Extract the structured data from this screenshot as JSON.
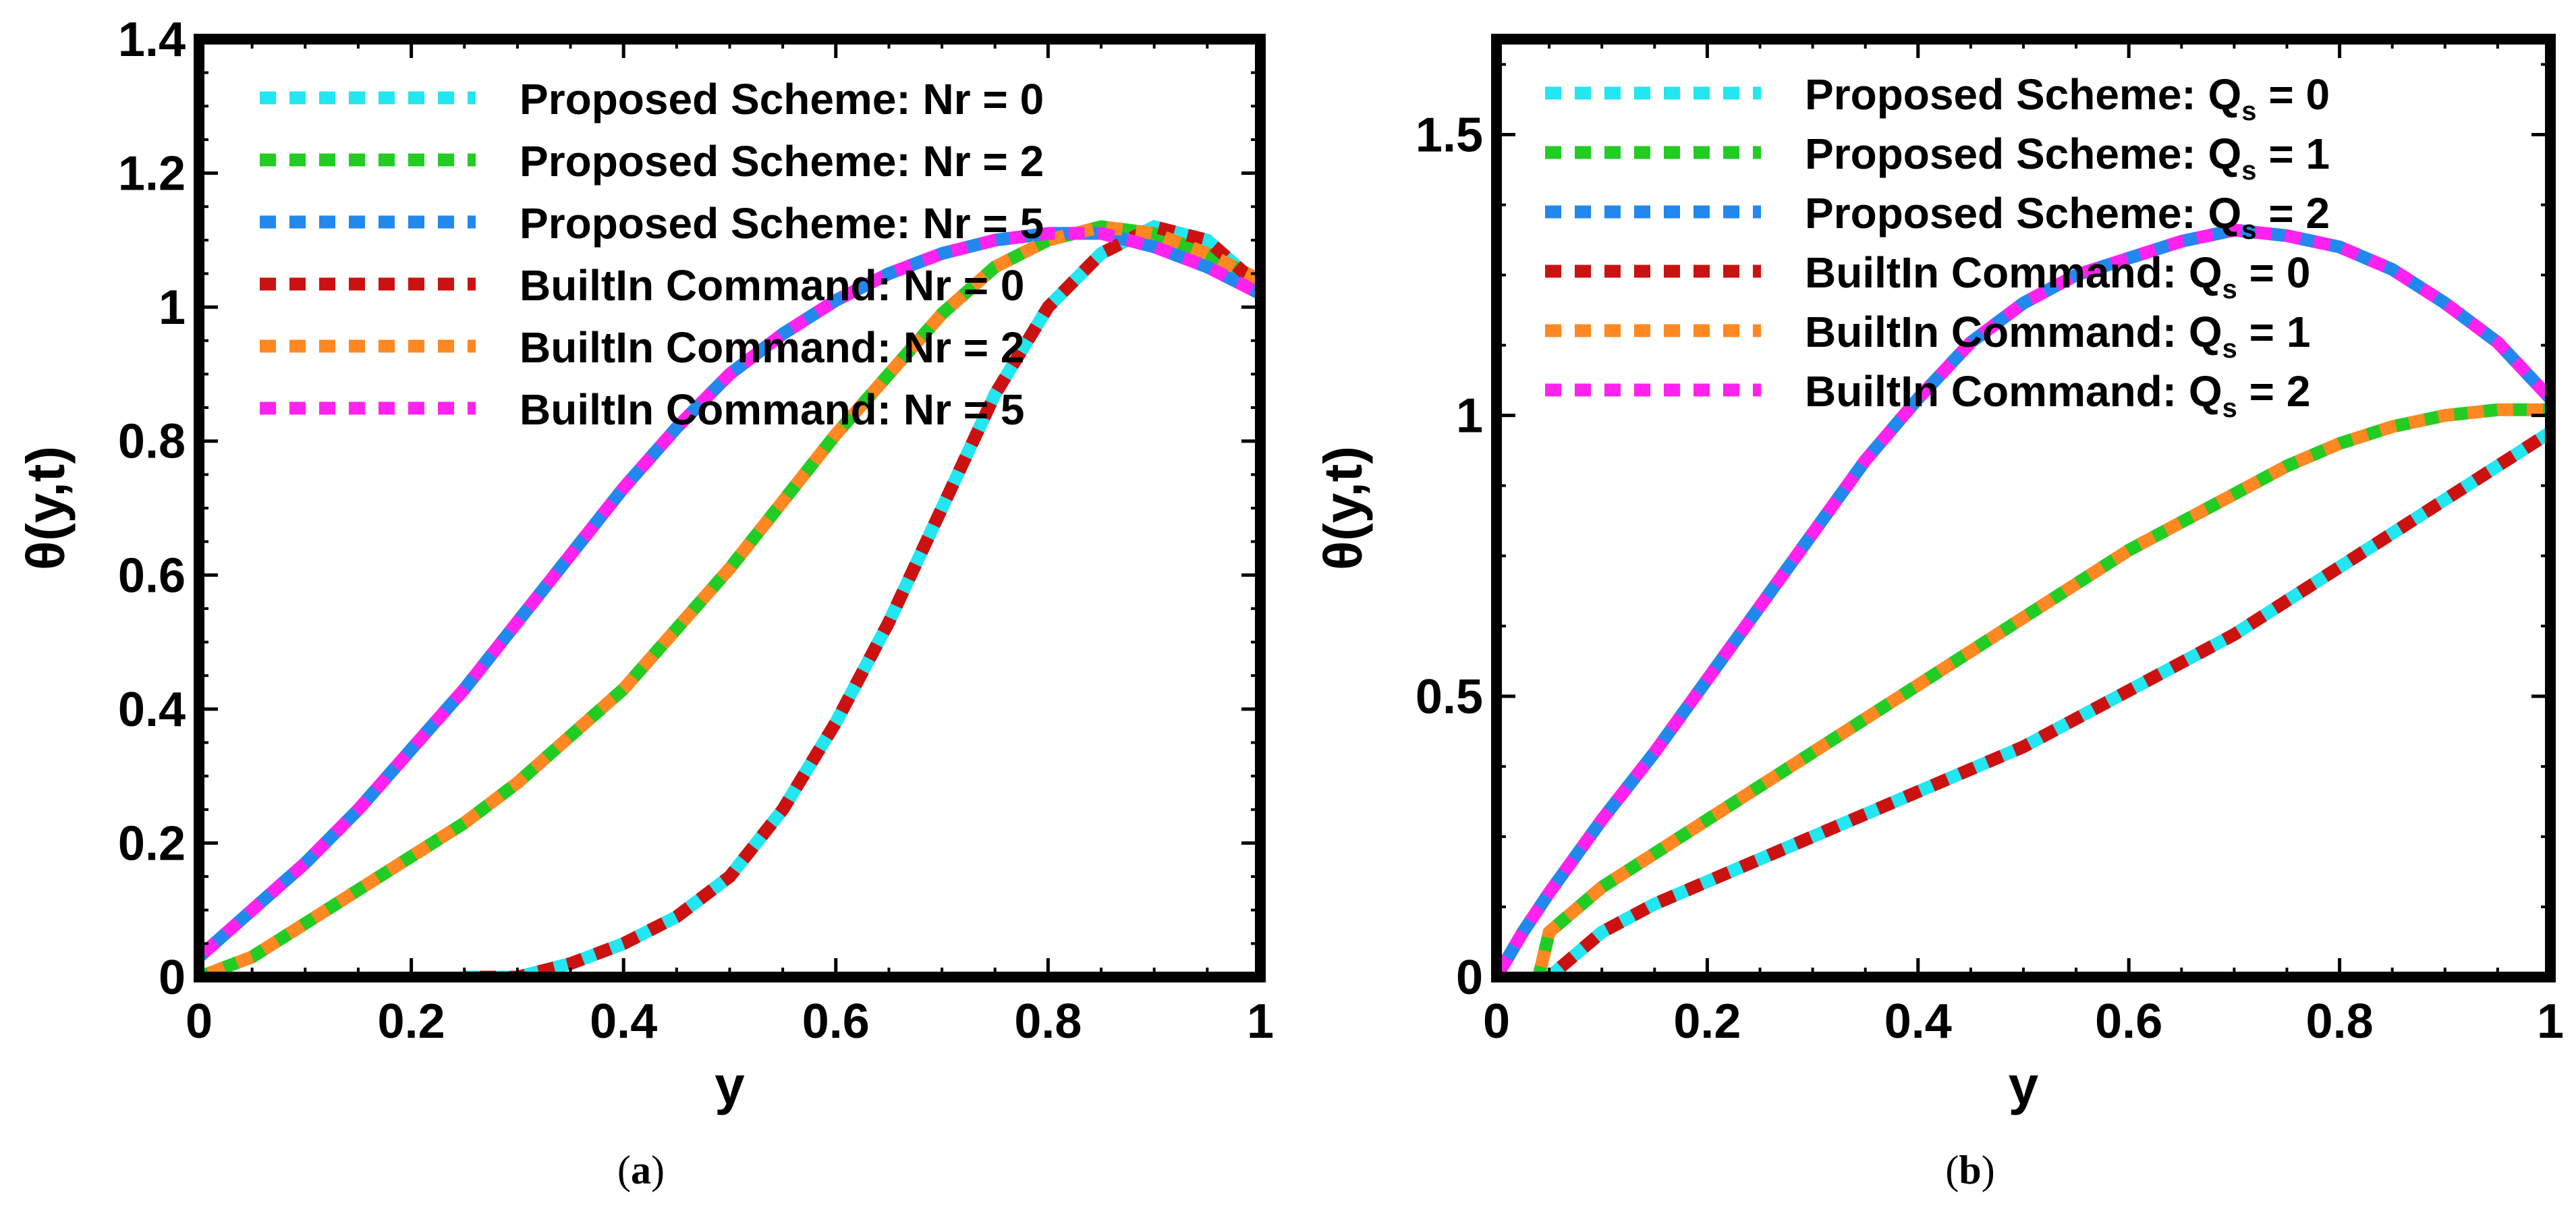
{
  "chart_data": [
    {
      "type": "line",
      "panel": "(a)",
      "xlabel": "y",
      "ylabel": "θ(y,t)",
      "xlim": [
        0,
        1
      ],
      "ylim": [
        0,
        1.4
      ],
      "xticks": [
        0,
        0.2,
        0.4,
        0.6,
        0.8,
        1
      ],
      "xtick_labels": [
        "0",
        "0.2",
        "0.4",
        "0.6",
        "0.8",
        "1"
      ],
      "yticks": [
        0,
        0.2,
        0.4,
        0.6,
        0.8,
        1,
        1.2,
        1.4
      ],
      "ytick_labels": [
        "0",
        "0.2",
        "0.4",
        "0.6",
        "0.8",
        "1",
        "1.2",
        "1.4"
      ],
      "legend_position": "top-left",
      "series": [
        {
          "name": "Proposed Scheme: Nr = 0",
          "prefix": "Proposed Scheme: Nr = ",
          "suffix": "0",
          "color": "#22e6f0",
          "x": [
            0.25,
            0.3,
            0.35,
            0.4,
            0.45,
            0.5,
            0.55,
            0.6,
            0.65,
            0.7,
            0.75,
            0.8,
            0.85,
            0.9,
            0.95,
            1.0
          ],
          "y": [
            0.0,
            0.0,
            0.02,
            0.05,
            0.09,
            0.15,
            0.25,
            0.38,
            0.53,
            0.7,
            0.87,
            1.0,
            1.08,
            1.12,
            1.1,
            1.03
          ]
        },
        {
          "name": "Proposed Scheme: Nr = 2",
          "prefix": "Proposed Scheme: Nr = ",
          "suffix": "2",
          "color": "#22cc22",
          "x": [
            0.0,
            0.05,
            0.1,
            0.15,
            0.2,
            0.25,
            0.3,
            0.35,
            0.4,
            0.45,
            0.5,
            0.55,
            0.6,
            0.65,
            0.7,
            0.75,
            0.8,
            0.85,
            0.9,
            0.95,
            1.0
          ],
          "y": [
            0.0,
            0.03,
            0.08,
            0.13,
            0.18,
            0.23,
            0.29,
            0.36,
            0.43,
            0.52,
            0.61,
            0.71,
            0.81,
            0.9,
            0.99,
            1.06,
            1.1,
            1.12,
            1.11,
            1.08,
            1.04
          ]
        },
        {
          "name": "Proposed Scheme: Nr = 5",
          "prefix": "Proposed Scheme: Nr = ",
          "suffix": "5",
          "color": "#2288ee",
          "x": [
            0.0,
            0.05,
            0.1,
            0.15,
            0.2,
            0.25,
            0.3,
            0.35,
            0.4,
            0.45,
            0.5,
            0.55,
            0.6,
            0.65,
            0.7,
            0.75,
            0.8,
            0.85,
            0.9,
            0.95,
            1.0
          ],
          "y": [
            0.03,
            0.1,
            0.17,
            0.25,
            0.34,
            0.43,
            0.53,
            0.63,
            0.73,
            0.82,
            0.9,
            0.96,
            1.01,
            1.05,
            1.08,
            1.1,
            1.11,
            1.11,
            1.09,
            1.06,
            1.02
          ]
        },
        {
          "name": "BuiltIn Command: Nr = 0",
          "prefix": "BuiltIn Command: Nr = ",
          "suffix": "0",
          "color": "#cc1111",
          "x": [
            0.25,
            0.3,
            0.35,
            0.4,
            0.45,
            0.5,
            0.55,
            0.6,
            0.65,
            0.7,
            0.75,
            0.8,
            0.85,
            0.9,
            0.95,
            1.0
          ],
          "y": [
            0.0,
            0.0,
            0.02,
            0.05,
            0.09,
            0.15,
            0.25,
            0.38,
            0.53,
            0.7,
            0.87,
            1.0,
            1.08,
            1.12,
            1.1,
            1.03
          ]
        },
        {
          "name": "BuiltIn Command: Nr = 2",
          "prefix": "BuiltIn Command: Nr = ",
          "suffix": "2",
          "color": "#ff8822",
          "x": [
            0.0,
            0.05,
            0.1,
            0.15,
            0.2,
            0.25,
            0.3,
            0.35,
            0.4,
            0.45,
            0.5,
            0.55,
            0.6,
            0.65,
            0.7,
            0.75,
            0.8,
            0.85,
            0.9,
            0.95,
            1.0
          ],
          "y": [
            0.0,
            0.03,
            0.08,
            0.13,
            0.18,
            0.23,
            0.29,
            0.36,
            0.43,
            0.52,
            0.61,
            0.71,
            0.81,
            0.9,
            0.99,
            1.06,
            1.1,
            1.12,
            1.11,
            1.08,
            1.04
          ]
        },
        {
          "name": "BuiltIn Command: Nr = 5",
          "prefix": "BuiltIn Command: Nr = ",
          "suffix": "5",
          "color": "#ff22ee",
          "x": [
            0.0,
            0.05,
            0.1,
            0.15,
            0.2,
            0.25,
            0.3,
            0.35,
            0.4,
            0.45,
            0.5,
            0.55,
            0.6,
            0.65,
            0.7,
            0.75,
            0.8,
            0.85,
            0.9,
            0.95,
            1.0
          ],
          "y": [
            0.03,
            0.1,
            0.17,
            0.25,
            0.34,
            0.43,
            0.53,
            0.63,
            0.73,
            0.82,
            0.9,
            0.96,
            1.01,
            1.05,
            1.08,
            1.1,
            1.11,
            1.11,
            1.09,
            1.06,
            1.02
          ]
        }
      ]
    },
    {
      "type": "line",
      "panel": "(b)",
      "xlabel": "y",
      "ylabel": "θ(y,t)",
      "xlim": [
        0,
        1
      ],
      "ylim": [
        0,
        1.67
      ],
      "xticks": [
        0,
        0.2,
        0.4,
        0.6,
        0.8,
        1
      ],
      "xtick_labels": [
        "0",
        "0.2",
        "0.4",
        "0.6",
        "0.8",
        "1"
      ],
      "yticks": [
        0,
        0.5,
        1,
        1.5
      ],
      "ytick_labels": [
        "0",
        "0.5",
        "1",
        "1.5"
      ],
      "legend_position": "top-left",
      "series": [
        {
          "name": "Proposed Scheme: Qs = 0",
          "prefix": "Proposed Scheme: Q",
          "sub": "s",
          "suffix": " = 0",
          "color": "#22e6f0",
          "x": [
            0.05,
            0.1,
            0.15,
            0.2,
            0.25,
            0.3,
            0.35,
            0.4,
            0.45,
            0.5,
            0.55,
            0.6,
            0.65,
            0.7,
            0.75,
            0.8,
            0.85,
            0.9,
            0.95,
            1.0
          ],
          "y": [
            0.0,
            0.08,
            0.13,
            0.17,
            0.21,
            0.25,
            0.29,
            0.33,
            0.37,
            0.41,
            0.46,
            0.51,
            0.56,
            0.61,
            0.67,
            0.73,
            0.79,
            0.85,
            0.91,
            0.97
          ]
        },
        {
          "name": "Proposed Scheme: Qs = 1",
          "prefix": "Proposed Scheme: Q",
          "sub": "s",
          "suffix": " = 1",
          "color": "#22cc22",
          "x": [
            0.04,
            0.05,
            0.1,
            0.15,
            0.2,
            0.25,
            0.3,
            0.35,
            0.4,
            0.45,
            0.5,
            0.55,
            0.6,
            0.65,
            0.7,
            0.75,
            0.8,
            0.85,
            0.9,
            0.95,
            1.0
          ],
          "y": [
            0.0,
            0.08,
            0.16,
            0.22,
            0.28,
            0.34,
            0.4,
            0.46,
            0.52,
            0.58,
            0.64,
            0.7,
            0.76,
            0.81,
            0.86,
            0.91,
            0.95,
            0.98,
            1.0,
            1.01,
            1.01
          ]
        },
        {
          "name": "Proposed Scheme: Qs = 2",
          "prefix": "Proposed Scheme: Q",
          "sub": "s",
          "suffix": " = 2",
          "color": "#2288ee",
          "x": [
            0.0,
            0.025,
            0.05,
            0.1,
            0.15,
            0.2,
            0.25,
            0.3,
            0.35,
            0.4,
            0.45,
            0.5,
            0.55,
            0.6,
            0.65,
            0.7,
            0.75,
            0.8,
            0.85,
            0.9,
            0.95,
            1.0
          ],
          "y": [
            0.0,
            0.08,
            0.15,
            0.28,
            0.4,
            0.53,
            0.66,
            0.79,
            0.92,
            1.03,
            1.13,
            1.2,
            1.25,
            1.28,
            1.31,
            1.33,
            1.32,
            1.3,
            1.26,
            1.2,
            1.13,
            1.03
          ]
        },
        {
          "name": "BuiltIn Command: Qs = 0",
          "prefix": "BuiltIn Command: Q",
          "sub": "s",
          "suffix": " = 0",
          "color": "#cc1111",
          "x": [
            0.05,
            0.1,
            0.15,
            0.2,
            0.25,
            0.3,
            0.35,
            0.4,
            0.45,
            0.5,
            0.55,
            0.6,
            0.65,
            0.7,
            0.75,
            0.8,
            0.85,
            0.9,
            0.95,
            1.0
          ],
          "y": [
            0.0,
            0.08,
            0.13,
            0.17,
            0.21,
            0.25,
            0.29,
            0.33,
            0.37,
            0.41,
            0.46,
            0.51,
            0.56,
            0.61,
            0.67,
            0.73,
            0.79,
            0.85,
            0.91,
            0.97
          ]
        },
        {
          "name": "BuiltIn Command: Qs = 1",
          "prefix": "BuiltIn Command: Q",
          "sub": "s",
          "suffix": " = 1",
          "color": "#ff8822",
          "x": [
            0.04,
            0.05,
            0.1,
            0.15,
            0.2,
            0.25,
            0.3,
            0.35,
            0.4,
            0.45,
            0.5,
            0.55,
            0.6,
            0.65,
            0.7,
            0.75,
            0.8,
            0.85,
            0.9,
            0.95,
            1.0
          ],
          "y": [
            0.0,
            0.08,
            0.16,
            0.22,
            0.28,
            0.34,
            0.4,
            0.46,
            0.52,
            0.58,
            0.64,
            0.7,
            0.76,
            0.81,
            0.86,
            0.91,
            0.95,
            0.98,
            1.0,
            1.01,
            1.01
          ]
        },
        {
          "name": "BuiltIn Command: Qs = 2",
          "prefix": "BuiltIn Command: Q",
          "sub": "s",
          "suffix": " = 2",
          "color": "#ff22ee",
          "x": [
            0.0,
            0.025,
            0.05,
            0.1,
            0.15,
            0.2,
            0.25,
            0.3,
            0.35,
            0.4,
            0.45,
            0.5,
            0.55,
            0.6,
            0.65,
            0.7,
            0.75,
            0.8,
            0.85,
            0.9,
            0.95,
            1.0
          ],
          "y": [
            0.0,
            0.08,
            0.15,
            0.28,
            0.4,
            0.53,
            0.66,
            0.79,
            0.92,
            1.03,
            1.13,
            1.2,
            1.25,
            1.28,
            1.31,
            1.33,
            1.32,
            1.3,
            1.26,
            1.2,
            1.13,
            1.03
          ]
        }
      ]
    }
  ]
}
